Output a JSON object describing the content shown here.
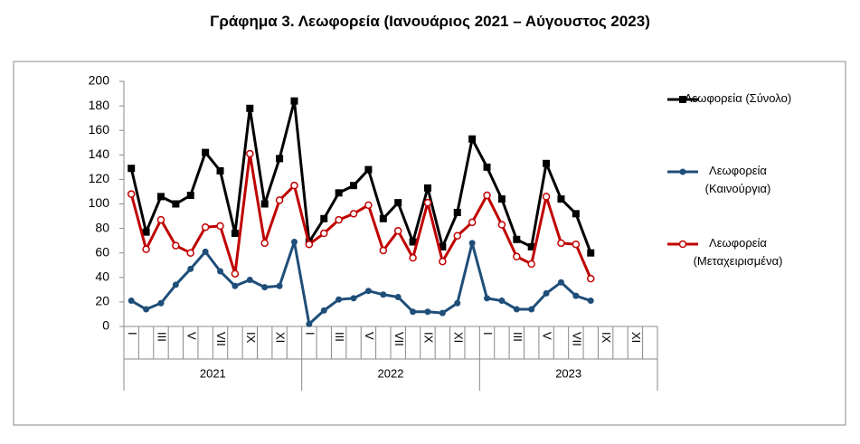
{
  "chart_data": {
    "type": "line",
    "title": "Γράφημα 3. Λεωφορεία (Ιανουάριος 2021 – Αύγουστος 2023)",
    "categories": [
      "I",
      null,
      "III",
      null,
      "V",
      null,
      "VII",
      null,
      "IX",
      null,
      "XI",
      null,
      "I",
      null,
      "III",
      null,
      "V",
      null,
      "VII",
      null,
      "IX",
      null,
      "XI",
      null,
      "I",
      null,
      "III",
      null,
      "V",
      null,
      "VII",
      null,
      "IX",
      null,
      "XI",
      null
    ],
    "years": [
      "2021",
      "2022",
      "2023"
    ],
    "ylim": [
      0,
      200
    ],
    "yticks": [
      0,
      20,
      40,
      60,
      80,
      100,
      120,
      140,
      160,
      180,
      200
    ],
    "grid": false,
    "legend": "right",
    "series": [
      {
        "name": "Λεωφορεία (Σύνολο)",
        "color": "#000000",
        "marker": "square",
        "values": [
          129,
          77,
          106,
          100,
          107,
          142,
          127,
          76,
          178,
          100,
          137,
          184,
          69,
          88,
          109,
          115,
          128,
          88,
          101,
          69,
          113,
          65,
          93,
          153,
          130,
          104,
          71,
          65,
          133,
          104,
          92,
          60,
          null,
          null,
          null,
          null
        ]
      },
      {
        "name": "Λεωφορεία (Καινούργια)",
        "color": "#1f4e79",
        "marker": "circle",
        "values": [
          21,
          14,
          19,
          34,
          47,
          61,
          45,
          33,
          38,
          32,
          33,
          69,
          2,
          13,
          22,
          23,
          29,
          26,
          24,
          12,
          12,
          11,
          19,
          68,
          23,
          21,
          14,
          14,
          27,
          36,
          25,
          21,
          null,
          null,
          null,
          null
        ]
      },
      {
        "name": "Λεωφορεία (Μεταχειρισμένα)",
        "color": "#c00000",
        "marker": "open-circle",
        "values": [
          108,
          63,
          87,
          66,
          60,
          81,
          82,
          43,
          141,
          68,
          103,
          115,
          67,
          76,
          87,
          92,
          99,
          62,
          78,
          56,
          101,
          53,
          74,
          85,
          107,
          83,
          57,
          51,
          106,
          68,
          67,
          39,
          null,
          null,
          null,
          null
        ]
      }
    ]
  }
}
